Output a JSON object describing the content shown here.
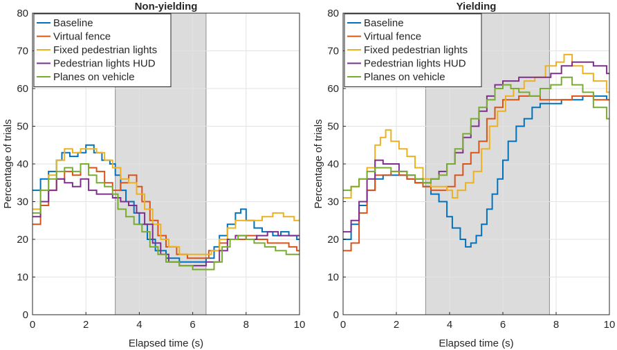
{
  "chart_data": [
    {
      "type": "line",
      "title": "Non-yielding",
      "xlabel": "Elapsed time (s)",
      "ylabel": "Percentage of trials",
      "xlim": [
        0,
        10
      ],
      "ylim": [
        0,
        80
      ],
      "xticks": [
        "0",
        "2",
        "4",
        "6",
        "8",
        "10"
      ],
      "yticks": [
        "0",
        "10",
        "20",
        "30",
        "40",
        "50",
        "60",
        "70",
        "80"
      ],
      "grid": true,
      "legend_position": "top-left",
      "shaded_region": [
        3.1,
        6.5
      ],
      "series": [
        {
          "name": "Baseline",
          "color": "#0072BD",
          "x": [
            0,
            0.3,
            0.6,
            0.9,
            1.1,
            1.4,
            1.7,
            2.0,
            2.3,
            2.6,
            2.9,
            3.1,
            3.3,
            3.5,
            3.8,
            4.0,
            4.3,
            4.6,
            5.0,
            5.5,
            6.0,
            6.5,
            6.8,
            7.0,
            7.3,
            7.6,
            7.8,
            8.0,
            8.3,
            8.6,
            9.0,
            9.3,
            9.6,
            9.9
          ],
          "y": [
            33,
            36,
            38,
            41,
            43,
            42,
            43,
            45,
            43,
            41,
            40,
            37,
            33,
            30,
            27,
            24,
            20,
            17,
            15,
            14,
            14,
            15,
            18,
            21,
            24,
            27,
            28,
            25,
            23,
            22,
            21,
            22,
            21,
            20
          ]
        },
        {
          "name": "Virtual fence",
          "color": "#D95319",
          "x": [
            0,
            0.3,
            0.6,
            0.9,
            1.2,
            1.5,
            1.8,
            2.1,
            2.4,
            2.7,
            3.0,
            3.3,
            3.6,
            3.9,
            4.1,
            4.4,
            4.7,
            5.0,
            5.4,
            5.8,
            6.2,
            6.6,
            7.0,
            7.3,
            7.6,
            8.0,
            8.4,
            8.8,
            9.2,
            9.6,
            9.9
          ],
          "y": [
            24,
            29,
            33,
            36,
            38,
            37,
            40,
            39,
            38,
            35,
            33,
            35,
            37,
            34,
            30,
            25,
            21,
            18,
            16,
            15,
            15,
            17,
            19,
            20,
            20,
            21,
            20,
            19,
            19,
            18,
            17
          ]
        },
        {
          "name": "Fixed pedestrian lights",
          "color": "#EDB120",
          "x": [
            0,
            0.3,
            0.6,
            0.9,
            1.2,
            1.5,
            1.8,
            2.1,
            2.4,
            2.7,
            3.0,
            3.3,
            3.6,
            3.9,
            4.2,
            4.5,
            4.8,
            5.1,
            5.5,
            5.9,
            6.3,
            6.7,
            7.0,
            7.3,
            7.6,
            7.9,
            8.2,
            8.6,
            9.0,
            9.4,
            9.8
          ],
          "y": [
            28,
            33,
            37,
            41,
            44,
            43,
            44,
            44,
            43,
            41,
            39,
            36,
            35,
            32,
            28,
            24,
            20,
            18,
            16,
            16,
            16,
            17,
            20,
            23,
            25,
            25,
            25,
            26,
            27,
            26,
            25
          ]
        },
        {
          "name": "Pedestrian lights HUD",
          "color": "#7E2F8E",
          "x": [
            0,
            0.3,
            0.6,
            0.9,
            1.2,
            1.5,
            1.8,
            2.1,
            2.4,
            2.7,
            3.0,
            3.3,
            3.6,
            3.9,
            4.2,
            4.5,
            4.8,
            5.1,
            5.5,
            6.0,
            6.5,
            7.0,
            7.3,
            7.6,
            8.0,
            8.4,
            8.8,
            9.2,
            9.6,
            9.9
          ],
          "y": [
            26,
            30,
            33,
            36,
            35,
            34,
            36,
            33,
            32,
            32,
            31,
            30,
            29,
            27,
            24,
            19,
            16,
            14,
            13,
            13,
            14,
            17,
            20,
            21,
            20,
            21,
            22,
            21,
            21,
            21
          ]
        },
        {
          "name": "Planes on vehicle",
          "color": "#77AC30",
          "x": [
            0,
            0.3,
            0.6,
            0.9,
            1.2,
            1.5,
            1.8,
            2.1,
            2.4,
            2.7,
            3.0,
            3.2,
            3.5,
            3.8,
            4.1,
            4.4,
            4.7,
            5.0,
            5.5,
            6.0,
            6.5,
            6.8,
            7.1,
            7.4,
            7.7,
            8.0,
            8.3,
            8.7,
            9.1,
            9.5,
            9.9
          ],
          "y": [
            27,
            33,
            36,
            38,
            39,
            38,
            40,
            37,
            35,
            34,
            32,
            28,
            26,
            24,
            22,
            18,
            16,
            14,
            13,
            12,
            12,
            14,
            18,
            20,
            21,
            20,
            19,
            18,
            17,
            16,
            16
          ]
        }
      ]
    },
    {
      "type": "line",
      "title": "Yielding",
      "xlabel": "Elapsed time (s)",
      "ylabel": "Percentage of trials",
      "xlim": [
        0,
        10
      ],
      "ylim": [
        0,
        80
      ],
      "xticks": [
        "0",
        "2",
        "4",
        "6",
        "8",
        "10"
      ],
      "yticks": [
        "0",
        "10",
        "20",
        "30",
        "40",
        "50",
        "60",
        "70",
        "80"
      ],
      "grid": true,
      "legend_position": "top-left",
      "shaded_region": [
        3.1,
        7.75
      ],
      "series": [
        {
          "name": "Baseline",
          "color": "#0072BD",
          "x": [
            0,
            0.3,
            0.6,
            0.9,
            1.2,
            1.5,
            1.8,
            2.1,
            2.4,
            2.7,
            3.0,
            3.3,
            3.6,
            3.9,
            4.1,
            4.4,
            4.6,
            4.8,
            5.0,
            5.2,
            5.4,
            5.6,
            5.8,
            6.0,
            6.2,
            6.5,
            6.8,
            7.1,
            7.4,
            7.8,
            8.2,
            8.6,
            9.0,
            9.4,
            9.9
          ],
          "y": [
            20,
            24,
            29,
            33,
            36,
            37,
            37,
            37,
            36,
            35,
            34,
            32,
            30,
            26,
            23,
            20,
            18,
            19,
            21,
            24,
            28,
            32,
            36,
            41,
            46,
            50,
            52,
            55,
            56,
            56,
            57,
            57,
            58,
            58,
            57
          ]
        },
        {
          "name": "Virtual fence",
          "color": "#D95319",
          "x": [
            0,
            0.3,
            0.6,
            0.9,
            1.2,
            1.5,
            1.8,
            2.1,
            2.4,
            2.7,
            3.0,
            3.3,
            3.6,
            3.9,
            4.2,
            4.5,
            4.8,
            5.1,
            5.4,
            5.7,
            6.0,
            6.3,
            6.6,
            7.0,
            7.4,
            7.8,
            8.2,
            8.6,
            9.0,
            9.4,
            9.9
          ],
          "y": [
            17,
            19,
            27,
            33,
            37,
            37,
            38,
            37,
            36,
            35,
            34,
            33,
            33,
            34,
            37,
            40,
            43,
            46,
            52,
            55,
            57,
            57,
            58,
            58,
            57,
            57,
            57,
            58,
            58,
            57,
            57
          ]
        },
        {
          "name": "Fixed pedestrian lights",
          "color": "#EDB120",
          "x": [
            0,
            0.3,
            0.6,
            0.9,
            1.2,
            1.4,
            1.6,
            1.8,
            2.1,
            2.4,
            2.7,
            3.0,
            3.3,
            3.6,
            3.9,
            4.1,
            4.3,
            4.6,
            4.9,
            5.2,
            5.5,
            5.8,
            6.1,
            6.4,
            6.8,
            7.2,
            7.6,
            8.0,
            8.3,
            8.6,
            9.0,
            9.4,
            9.9
          ],
          "y": [
            31,
            34,
            36,
            39,
            45,
            47,
            49,
            46,
            44,
            42,
            39,
            36,
            34,
            34,
            33,
            31,
            33,
            35,
            38,
            44,
            50,
            54,
            58,
            60,
            62,
            63,
            66,
            67,
            69,
            66,
            64,
            62,
            59
          ]
        },
        {
          "name": "Pedestrian lights HUD",
          "color": "#7E2F8E",
          "x": [
            0,
            0.3,
            0.6,
            0.9,
            1.2,
            1.5,
            1.8,
            2.1,
            2.4,
            2.7,
            3.0,
            3.3,
            3.6,
            3.9,
            4.2,
            4.5,
            4.8,
            5.1,
            5.4,
            5.7,
            6.0,
            6.3,
            6.6,
            7.0,
            7.4,
            7.8,
            8.2,
            8.6,
            9.0,
            9.4,
            9.9
          ],
          "y": [
            22,
            25,
            30,
            36,
            41,
            40,
            40,
            38,
            37,
            36,
            35,
            36,
            38,
            40,
            43,
            47,
            50,
            54,
            58,
            61,
            62,
            62,
            63,
            63,
            63,
            64,
            66,
            67,
            67,
            66,
            64
          ]
        },
        {
          "name": "Planes on vehicle",
          "color": "#77AC30",
          "x": [
            0,
            0.3,
            0.6,
            0.9,
            1.2,
            1.5,
            1.8,
            2.1,
            2.4,
            2.7,
            3.0,
            3.3,
            3.6,
            3.9,
            4.2,
            4.5,
            4.8,
            5.1,
            5.4,
            5.7,
            6.0,
            6.3,
            6.6,
            7.0,
            7.4,
            7.8,
            8.2,
            8.6,
            9.0,
            9.4,
            9.9
          ],
          "y": [
            33,
            34,
            36,
            38,
            39,
            39,
            38,
            38,
            37,
            36,
            35,
            36,
            37,
            40,
            44,
            48,
            52,
            55,
            57,
            60,
            61,
            60,
            59,
            58,
            60,
            61,
            63,
            61,
            59,
            55,
            52
          ]
        }
      ]
    }
  ]
}
